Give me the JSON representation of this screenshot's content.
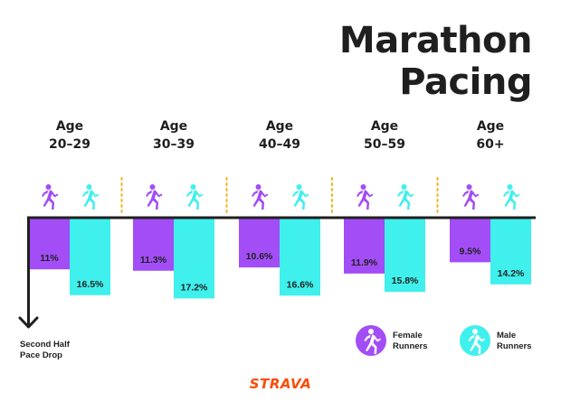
{
  "title_lines": [
    "Marathon",
    "Pacing"
  ],
  "brand": "STRAVA",
  "axis_note_lines": [
    "Second Half",
    "Pace Drop"
  ],
  "legend": {
    "female_lines": [
      "Female",
      "Runners"
    ],
    "male_lines": [
      "Male",
      "Runners"
    ]
  },
  "colors": {
    "female": "#a24df6",
    "male": "#3ff0ec",
    "axis": "#1f1f1f",
    "divider": "#f6b21b",
    "brand": "#fc4c02"
  },
  "icons": [
    "female-runner-icon",
    "male-runner-icon",
    "down-arrow-icon"
  ],
  "chart_data": {
    "type": "bar",
    "categories": [
      [
        "Age",
        "20–29"
      ],
      [
        "Age",
        "30–39"
      ],
      [
        "Age",
        "40–49"
      ],
      [
        "Age",
        "50–59"
      ],
      [
        "Age",
        "60+"
      ]
    ],
    "series": [
      {
        "name": "Female Runners",
        "values": [
          11,
          11.3,
          10.6,
          11.9,
          9.5
        ],
        "labels": [
          "11%",
          "11.3%",
          "10.6%",
          "11.9%",
          "9.5%"
        ]
      },
      {
        "name": "Male Runners",
        "values": [
          16.5,
          17.2,
          16.6,
          15.8,
          14.2
        ],
        "labels": [
          "16.5%",
          "17.2%",
          "16.6%",
          "15.8%",
          "14.2%"
        ]
      }
    ],
    "orientation": "downward from baseline",
    "legend": "bottom-right",
    "grid": false
  }
}
